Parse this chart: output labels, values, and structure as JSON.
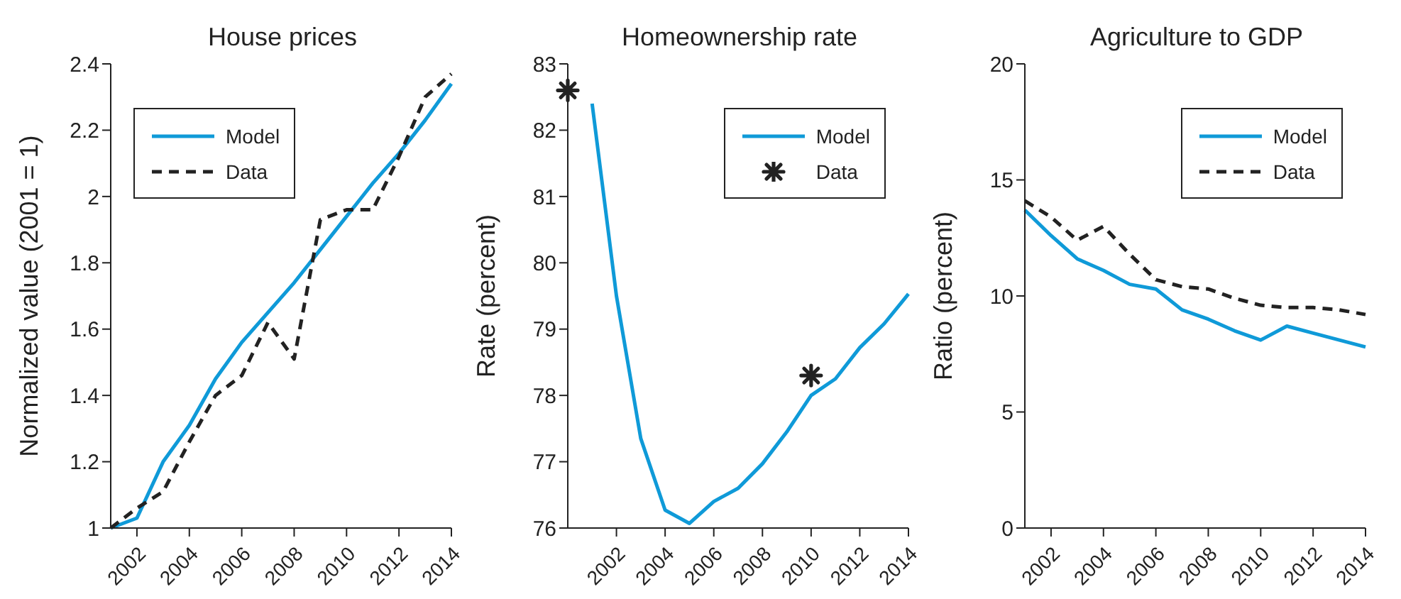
{
  "chart_data": [
    {
      "type": "line",
      "title": "House prices",
      "ylabel": "Normalized value (2001 = 1)",
      "x": [
        2001,
        2002,
        2003,
        2004,
        2005,
        2006,
        2007,
        2008,
        2009,
        2010,
        2011,
        2012,
        2013,
        2014
      ],
      "xlim": [
        2001,
        2014
      ],
      "xticks": [
        2002,
        2004,
        2006,
        2008,
        2010,
        2012,
        2014
      ],
      "ylim": [
        1,
        2.4
      ],
      "yticks": [
        1,
        1.2,
        1.4,
        1.6,
        1.8,
        2,
        2.2,
        2.4
      ],
      "legend": "top left",
      "grid": false,
      "series": [
        {
          "name": "Model",
          "color": "#0f9ad8",
          "values": [
            1.0,
            1.03,
            1.2,
            1.31,
            1.45,
            1.56,
            1.65,
            1.74,
            1.84,
            1.94,
            2.04,
            2.13,
            2.23,
            2.34
          ]
        },
        {
          "name": "Data",
          "color": "#222222",
          "line_style": "dashed",
          "values": [
            1.0,
            1.06,
            1.11,
            1.26,
            1.4,
            1.46,
            1.62,
            1.51,
            1.93,
            1.96,
            1.96,
            2.12,
            2.3,
            2.37
          ]
        }
      ]
    },
    {
      "type": "line",
      "title": "Homeownership rate",
      "ylabel": "Rate (percent)",
      "x": [
        2001,
        2002,
        2003,
        2004,
        2005,
        2006,
        2007,
        2008,
        2009,
        2010,
        2011,
        2012,
        2013,
        2014
      ],
      "xlim": [
        2000,
        2014
      ],
      "xticks": [
        2002,
        2004,
        2006,
        2008,
        2010,
        2012,
        2014
      ],
      "ylim": [
        76,
        83
      ],
      "yticks": [
        76,
        77,
        78,
        79,
        80,
        81,
        82,
        83
      ],
      "legend": "top right",
      "grid": false,
      "series": [
        {
          "name": "Model",
          "color": "#0f9ad8",
          "values": [
            82.4,
            79.5,
            77.35,
            76.27,
            76.07,
            76.4,
            76.6,
            76.97,
            77.45,
            78.0,
            78.25,
            78.72,
            79.08,
            79.53
          ]
        },
        {
          "name": "Data",
          "type": "scatter",
          "marker": "cross",
          "color": "#222222",
          "x": [
            2000,
            2010
          ],
          "values": [
            82.6,
            78.3
          ]
        }
      ]
    },
    {
      "type": "line",
      "title": "Agriculture to GDP",
      "ylabel": "Ratio (percent)",
      "x": [
        2001,
        2002,
        2003,
        2004,
        2005,
        2006,
        2007,
        2008,
        2009,
        2010,
        2011,
        2012,
        2013,
        2014
      ],
      "xlim": [
        2001,
        2014
      ],
      "xticks": [
        2002,
        2004,
        2006,
        2008,
        2010,
        2012,
        2014
      ],
      "ylim": [
        0,
        20
      ],
      "yticks": [
        0,
        5,
        10,
        15,
        20
      ],
      "legend": "top right",
      "grid": false,
      "series": [
        {
          "name": "Model",
          "color": "#0f9ad8",
          "values": [
            13.7,
            12.6,
            11.6,
            11.1,
            10.5,
            10.3,
            9.4,
            9.0,
            8.5,
            8.1,
            8.7,
            8.4,
            8.1,
            7.8
          ]
        },
        {
          "name": "Data",
          "color": "#222222",
          "line_style": "dashed",
          "values": [
            14.1,
            13.4,
            12.4,
            13.0,
            11.8,
            10.7,
            10.4,
            10.3,
            9.9,
            9.6,
            9.5,
            9.5,
            9.4,
            9.2
          ]
        }
      ]
    }
  ]
}
